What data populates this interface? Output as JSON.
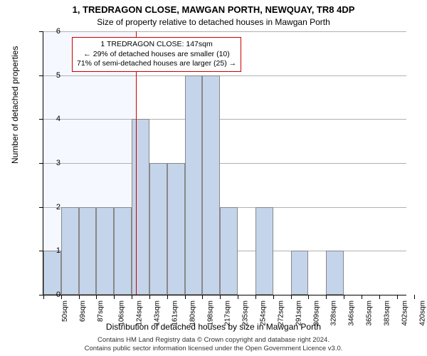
{
  "title": "1, TREDRAGON CLOSE, MAWGAN PORTH, NEWQUAY, TR8 4DP",
  "subtitle": "Size of property relative to detached houses in Mawgan Porth",
  "y_axis_label": "Number of detached properties",
  "x_axis_label": "Distribution of detached houses by size in Mawgan Porth",
  "footer_line1": "Contains HM Land Registry data © Crown copyright and database right 2024.",
  "footer_line2": "Contains public sector information licensed under the Open Government Licence v3.0.",
  "annotation": {
    "line1": "1 TREDRAGON CLOSE: 147sqm",
    "line2": "← 29% of detached houses are smaller (10)",
    "line3": "71% of semi-detached houses are larger (25) →"
  },
  "chart": {
    "type": "histogram",
    "ylim": [
      0,
      6
    ],
    "ytick_step": 1,
    "x_start": 50,
    "x_end": 430,
    "x_tick_step": 18.5,
    "bar_color": "#c4d4ea",
    "bar_border": "#888888",
    "grid_color": "#b0b0b0",
    "bg_left_color": "#f5f8ff",
    "bg_right_color": "#ffffff",
    "reference_x": 147,
    "reference_color": "#cc0000",
    "bars": [
      {
        "x0": 50,
        "x1": 68.5,
        "y": 1
      },
      {
        "x0": 68.5,
        "x1": 87,
        "y": 2
      },
      {
        "x0": 87,
        "x1": 105.5,
        "y": 2
      },
      {
        "x0": 105.5,
        "x1": 124,
        "y": 2
      },
      {
        "x0": 124,
        "x1": 142.5,
        "y": 2
      },
      {
        "x0": 142.5,
        "x1": 161,
        "y": 4
      },
      {
        "x0": 161,
        "x1": 179.5,
        "y": 3
      },
      {
        "x0": 179.5,
        "x1": 198,
        "y": 3
      },
      {
        "x0": 198,
        "x1": 216.5,
        "y": 5
      },
      {
        "x0": 216.5,
        "x1": 235,
        "y": 5
      },
      {
        "x0": 235,
        "x1": 253.5,
        "y": 2
      },
      {
        "x0": 253.5,
        "x1": 272,
        "y": 0
      },
      {
        "x0": 272,
        "x1": 290.5,
        "y": 2
      },
      {
        "x0": 290.5,
        "x1": 309,
        "y": 0
      },
      {
        "x0": 309,
        "x1": 327.5,
        "y": 1
      },
      {
        "x0": 327.5,
        "x1": 346,
        "y": 0
      },
      {
        "x0": 346,
        "x1": 364.5,
        "y": 1
      },
      {
        "x0": 364.5,
        "x1": 383,
        "y": 0
      },
      {
        "x0": 383,
        "x1": 401.5,
        "y": 0
      },
      {
        "x0": 401.5,
        "x1": 420,
        "y": 0
      }
    ]
  }
}
